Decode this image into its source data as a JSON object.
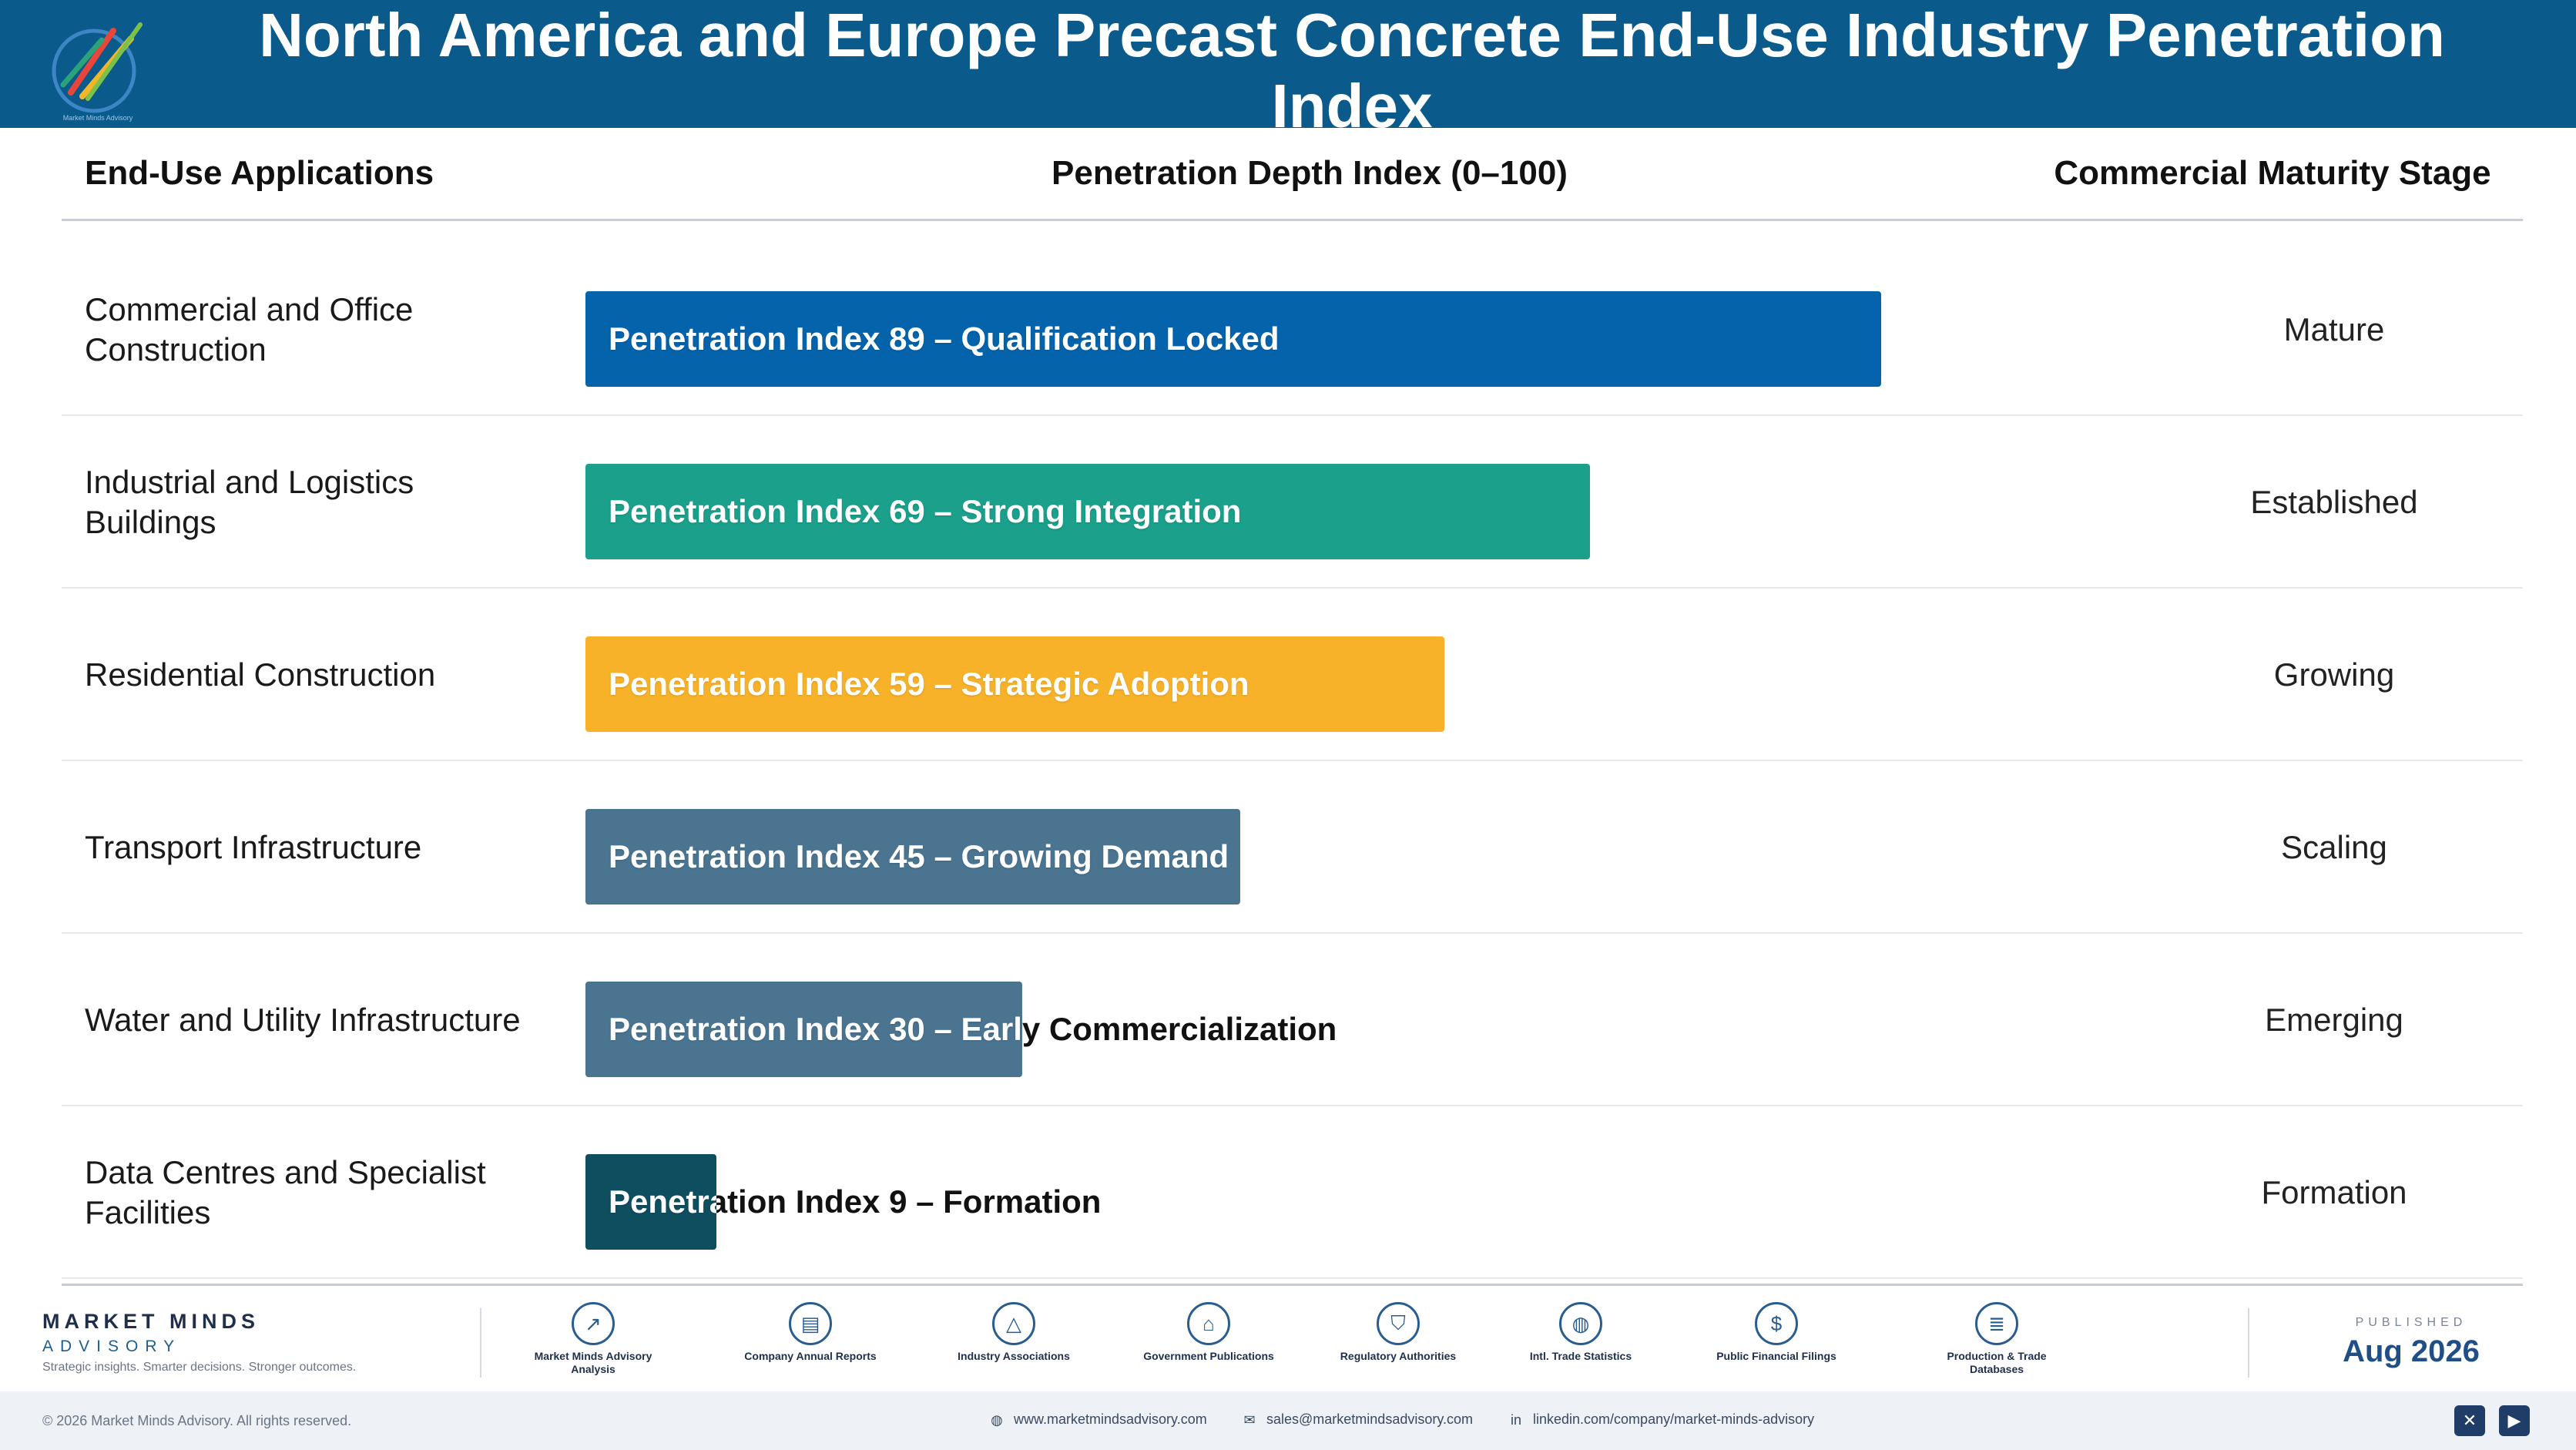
{
  "header": {
    "title": "North America and Europe Precast Concrete End-Use Industry Penetration Index",
    "logo_text": "Market Minds Advisory"
  },
  "columns": {
    "applications": "End-Use Applications",
    "index": "Penetration Depth Index (0–100)",
    "stage": "Commercial Maturity Stage"
  },
  "chart_data": {
    "type": "bar",
    "orientation": "horizontal",
    "title": "North America and Europe Precast Concrete End-Use Industry Penetration Index",
    "xlabel": "Penetration Depth Index (0–100)",
    "xlim": [
      0,
      100
    ],
    "categories": [
      "Commercial and Office Construction",
      "Industrial and Logistics Buildings",
      "Residential Construction",
      "Transport Infrastructure",
      "Water and Utility Infrastructure",
      "Data Centres and Specialist Facilities"
    ],
    "values": [
      89,
      69,
      59,
      45,
      30,
      9
    ],
    "bar_labels": [
      "Penetration Index 89 – Qualification Locked",
      "Penetration Index 69 – Strong Integration",
      "Penetration Index 59 – Strategic Adoption",
      "Penetration Index 45 – Growing Demand",
      "Penetration Index 30 – Early Commercialization",
      "Penetration Index 9 – Formation"
    ],
    "stages": [
      "Mature",
      "Established",
      "Growing",
      "Scaling",
      "Emerging",
      "Formation"
    ],
    "colors": [
      "#0463ab",
      "#1aa08b",
      "#f7b22a",
      "#4a7490",
      "#4a7490",
      "#0e4e5f"
    ],
    "grid": false,
    "legend": "none"
  },
  "footer": {
    "brand_name": "MARKET MINDS",
    "brand_sub": "ADVISORY",
    "tagline": "Strategic insights. Smarter decisions. Stronger outcomes.",
    "sources": [
      {
        "label": "Market Minds Advisory Analysis",
        "icon": "trend-chart-icon"
      },
      {
        "label": "Company Annual Reports",
        "icon": "document-icon"
      },
      {
        "label": "Industry Associations",
        "icon": "network-icon"
      },
      {
        "label": "Government Publications",
        "icon": "government-building-icon"
      },
      {
        "label": "Regulatory Authorities",
        "icon": "shield-icon"
      },
      {
        "label": "Intl. Trade Statistics",
        "icon": "globe-icon"
      },
      {
        "label": "Public Financial Filings",
        "icon": "dollar-coin-icon"
      },
      {
        "label": "Production & Trade Databases",
        "icon": "database-icon"
      }
    ],
    "published_label": "PUBLISHED",
    "published_date": "Aug 2026"
  },
  "bottom": {
    "copyright": "© 2026 Market Minds Advisory. All rights reserved.",
    "website": "www.marketmindsadvisory.com",
    "email": "sales@marketmindsadvisory.com",
    "linkedin": "linkedin.com/company/market-minds-advisory",
    "social": [
      "x-icon",
      "youtube-icon"
    ]
  }
}
